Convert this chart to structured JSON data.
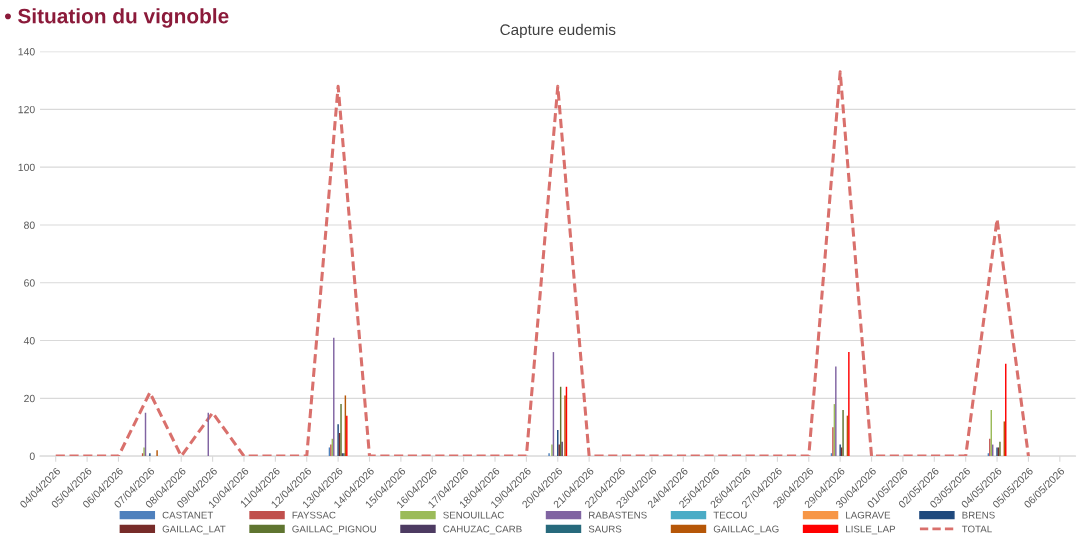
{
  "chart_data": {
    "type": "bar",
    "title": "Capture eudemis",
    "annotations": [
      "• Situation du vignoble"
    ],
    "categories": [
      "04/04/2026",
      "05/04/2026",
      "06/04/2026",
      "07/04/2026",
      "08/04/2026",
      "09/04/2026",
      "10/04/2026",
      "11/04/2026",
      "12/04/2026",
      "13/04/2026",
      "14/04/2026",
      "15/04/2026",
      "16/04/2026",
      "17/04/2026",
      "18/04/2026",
      "19/04/2026",
      "20/04/2026",
      "21/04/2026",
      "22/04/2026",
      "23/04/2026",
      "24/04/2026",
      "25/04/2026",
      "26/04/2026",
      "27/04/2026",
      "28/04/2026",
      "29/04/2026",
      "30/04/2026",
      "01/05/2026",
      "02/05/2026",
      "03/05/2026",
      "04/05/2026",
      "05/05/2026",
      "06/05/2026"
    ],
    "ylim": [
      0,
      140
    ],
    "yticks": [
      0,
      20,
      40,
      60,
      80,
      100,
      120,
      140
    ],
    "grid": "y",
    "legend": "bottom",
    "series": [
      {
        "name": "CASTANET",
        "color": "#4f81bd",
        "values": [
          0,
          0,
          0,
          0,
          0,
          0,
          0,
          0,
          0,
          3,
          0,
          0,
          0,
          0,
          0,
          0,
          1,
          0,
          0,
          0,
          0,
          0,
          0,
          0,
          0,
          1,
          0,
          0,
          0,
          0,
          1,
          0,
          0
        ]
      },
      {
        "name": "FAYSSAC",
        "color": "#c0504d",
        "values": [
          0,
          0,
          0,
          1,
          0,
          0,
          0,
          0,
          0,
          4,
          0,
          0,
          0,
          0,
          0,
          0,
          0,
          0,
          0,
          0,
          0,
          0,
          0,
          0,
          0,
          10,
          0,
          0,
          0,
          0,
          6,
          0,
          0
        ]
      },
      {
        "name": "SENOUILLAC",
        "color": "#9bbb59",
        "values": [
          0,
          0,
          0,
          3,
          0,
          0,
          0,
          0,
          0,
          6,
          0,
          0,
          0,
          0,
          0,
          0,
          4,
          0,
          0,
          0,
          0,
          0,
          0,
          0,
          0,
          18,
          0,
          0,
          0,
          0,
          16,
          0,
          0
        ]
      },
      {
        "name": "RABASTENS",
        "color": "#8064a2",
        "values": [
          0,
          0,
          0,
          15,
          0,
          15,
          0,
          0,
          0,
          41,
          0,
          0,
          0,
          0,
          0,
          0,
          36,
          0,
          0,
          0,
          0,
          0,
          0,
          0,
          0,
          31,
          0,
          0,
          0,
          0,
          4,
          0,
          0
        ]
      },
      {
        "name": "TECOU",
        "color": "#4bacc6",
        "values": [
          0,
          0,
          0,
          0,
          0,
          0,
          0,
          0,
          0,
          0,
          0,
          0,
          0,
          0,
          0,
          0,
          0,
          0,
          0,
          0,
          0,
          0,
          0,
          0,
          0,
          0,
          0,
          0,
          0,
          0,
          0,
          0,
          0
        ]
      },
      {
        "name": "LAGRAVE",
        "color": "#f79646",
        "values": [
          0,
          0,
          0,
          0,
          0,
          0,
          0,
          0,
          0,
          0,
          0,
          0,
          0,
          0,
          0,
          0,
          0,
          0,
          0,
          0,
          0,
          0,
          0,
          0,
          0,
          0,
          0,
          0,
          0,
          0,
          0,
          0,
          0
        ]
      },
      {
        "name": "BRENS",
        "color": "#1f497d",
        "values": [
          0,
          0,
          0,
          1,
          0,
          0,
          0,
          0,
          0,
          11,
          0,
          0,
          0,
          0,
          0,
          0,
          9,
          0,
          0,
          0,
          0,
          0,
          0,
          0,
          0,
          4,
          0,
          0,
          0,
          0,
          3,
          0,
          0
        ]
      },
      {
        "name": "GAILLAC_LAT",
        "color": "#772c2a",
        "values": [
          0,
          0,
          0,
          0,
          0,
          0,
          0,
          0,
          0,
          8,
          0,
          0,
          0,
          0,
          0,
          0,
          4,
          0,
          0,
          0,
          0,
          0,
          0,
          0,
          0,
          3,
          0,
          0,
          0,
          0,
          3,
          0,
          0
        ]
      },
      {
        "name": "GAILLAC_PIGNOU",
        "color": "#5f7530",
        "values": [
          0,
          0,
          0,
          0,
          0,
          0,
          0,
          0,
          0,
          18,
          0,
          0,
          0,
          0,
          0,
          0,
          24,
          0,
          0,
          0,
          0,
          0,
          0,
          0,
          0,
          16,
          0,
          0,
          0,
          0,
          5,
          0,
          0
        ]
      },
      {
        "name": "CAHUZAC_CARB",
        "color": "#4d3b62",
        "values": [
          0,
          0,
          0,
          0,
          0,
          0,
          0,
          0,
          0,
          1,
          0,
          0,
          0,
          0,
          0,
          0,
          5,
          0,
          0,
          0,
          0,
          0,
          0,
          0,
          0,
          0,
          0,
          0,
          0,
          0,
          0,
          0,
          0
        ]
      },
      {
        "name": "SAURS",
        "color": "#276a7c",
        "values": [
          0,
          0,
          0,
          0,
          0,
          0,
          0,
          0,
          0,
          1,
          0,
          0,
          0,
          0,
          0,
          0,
          0,
          0,
          0,
          0,
          0,
          0,
          0,
          0,
          0,
          0,
          0,
          0,
          0,
          0,
          0,
          0,
          0
        ]
      },
      {
        "name": "GAILLAC_LAG",
        "color": "#b65708",
        "values": [
          0,
          0,
          0,
          2,
          0,
          0,
          0,
          0,
          0,
          21,
          0,
          0,
          0,
          0,
          0,
          0,
          21,
          0,
          0,
          0,
          0,
          0,
          0,
          0,
          0,
          14,
          0,
          0,
          0,
          0,
          12,
          0,
          0
        ]
      },
      {
        "name": "LISLE_LAP",
        "color": "#ff0000",
        "values": [
          0,
          0,
          0,
          0,
          0,
          0,
          0,
          0,
          0,
          14,
          0,
          0,
          0,
          0,
          0,
          0,
          24,
          0,
          0,
          0,
          0,
          0,
          0,
          0,
          0,
          36,
          0,
          0,
          0,
          0,
          32,
          0,
          0
        ]
      },
      {
        "name": "TOTAL",
        "type": "line",
        "line_style": "dashed",
        "color": "#d9706c",
        "values": [
          0,
          0,
          0,
          22,
          0,
          15,
          0,
          0,
          0,
          128,
          0,
          0,
          0,
          0,
          0,
          0,
          128,
          0,
          0,
          0,
          0,
          0,
          0,
          0,
          0,
          133,
          0,
          0,
          0,
          0,
          82,
          0,
          null
        ]
      }
    ]
  }
}
